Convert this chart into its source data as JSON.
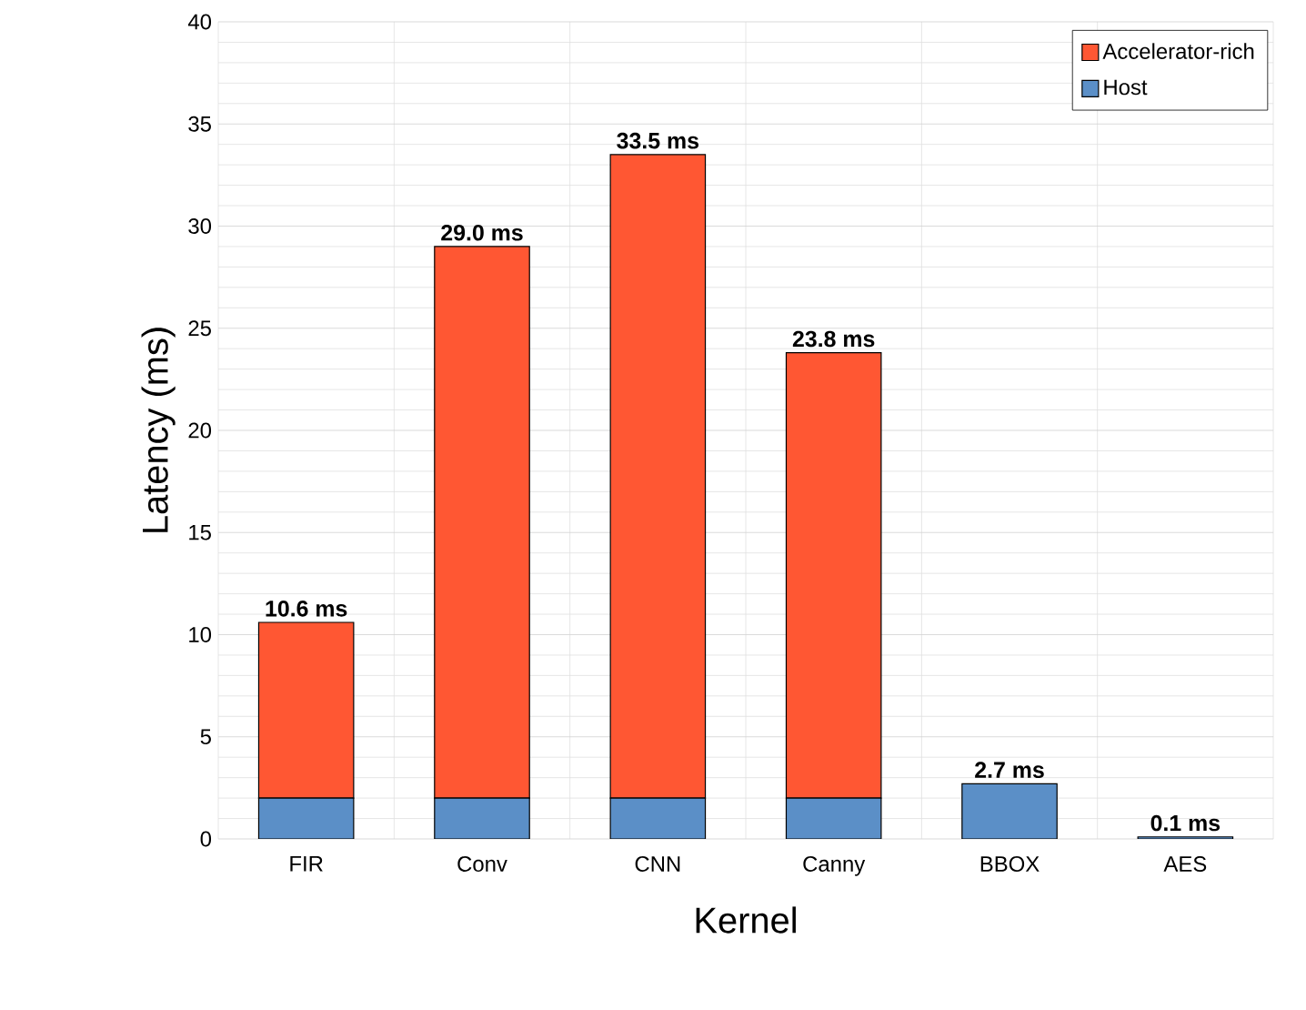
{
  "chart_data": {
    "type": "bar",
    "stacked": true,
    "xlabel": "Kernel",
    "ylabel": "Latency (ms)",
    "categories": [
      "FIR",
      "Conv",
      "CNN",
      "Canny",
      "BBOX",
      "AES"
    ],
    "series": [
      {
        "name": "Host",
        "color": "#5b8fc7",
        "values": [
          2.0,
          2.0,
          2.0,
          2.0,
          2.7,
          0.1
        ]
      },
      {
        "name": "Accelerator-rich",
        "color": "#ff5733",
        "values": [
          8.6,
          27.0,
          31.5,
          21.8,
          null,
          null
        ]
      }
    ],
    "totals": [
      "10.6 ms",
      "29.0 ms",
      "33.5 ms",
      "23.8 ms",
      "2.7 ms",
      "0.1 ms"
    ],
    "ylim": [
      0,
      40
    ],
    "yticks": [
      0,
      5,
      10,
      15,
      20,
      25,
      30,
      35,
      40
    ],
    "grid": true,
    "legend": "top right"
  }
}
